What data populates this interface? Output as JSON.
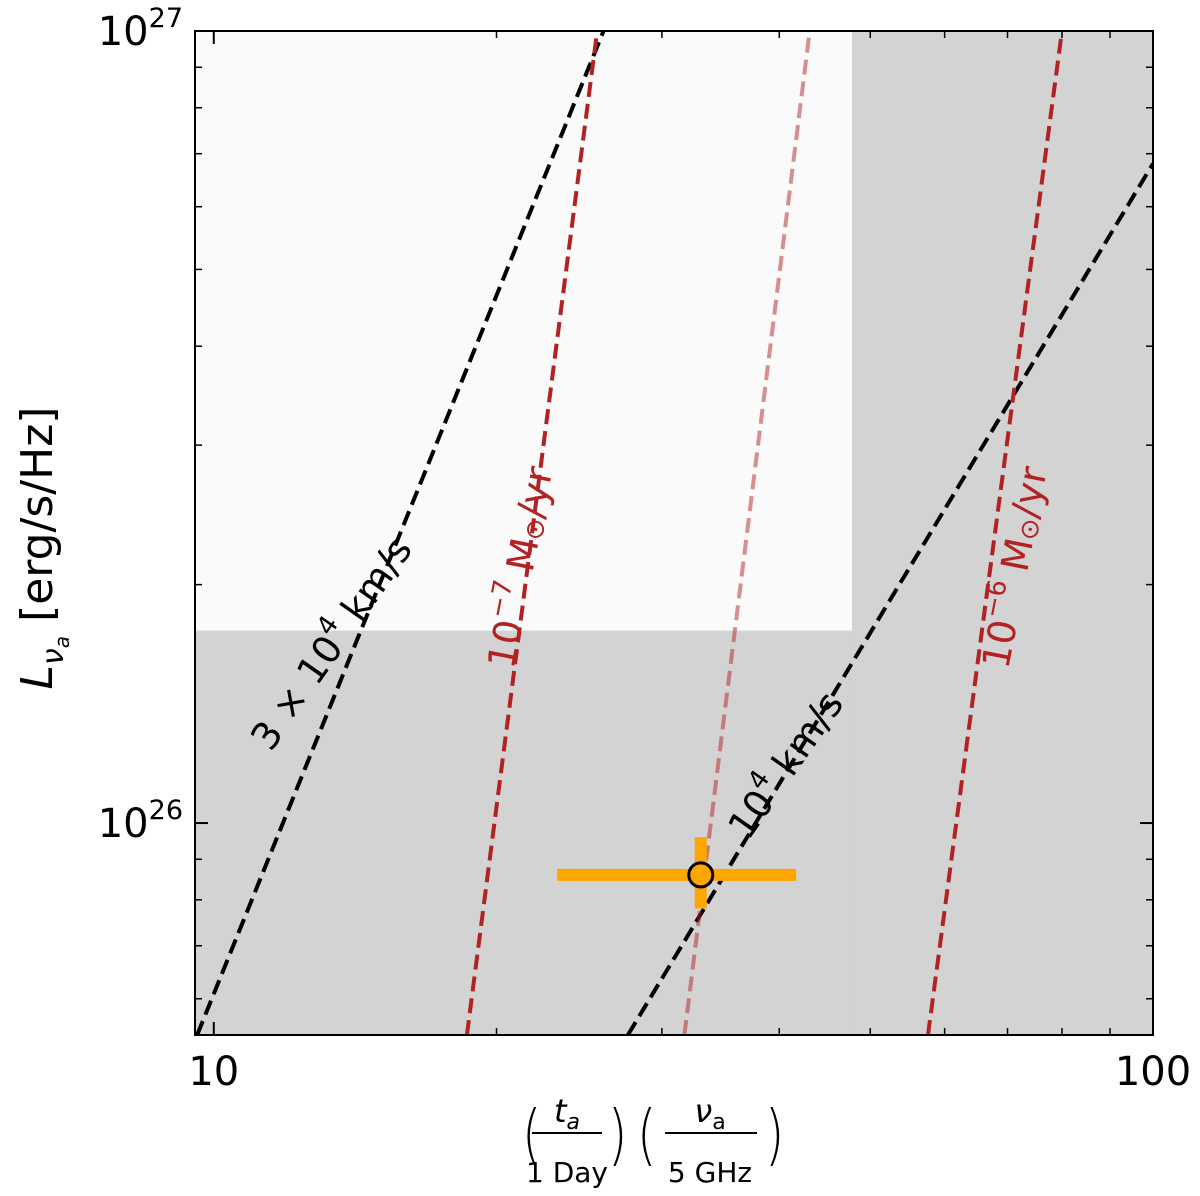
{
  "chart_data": {
    "type": "scatter",
    "xscale": "log",
    "yscale": "log",
    "xlim": [
      9.55,
      100
    ],
    "ylim": [
      5.4e+25,
      1e+27
    ],
    "ylabel_main": "L",
    "ylabel_sub": "ν",
    "ylabel_subsub": "a",
    "ylabel_units": " [erg/s/Hz]",
    "xlabel": {
      "t_num": "t",
      "t_sub": "a",
      "t_den": "1 Day",
      "nu_num": "ν",
      "nu_sub": "a",
      "nu_den": "5 GHz",
      "lparen": "(",
      "rparen": ")"
    },
    "x_ticks": [
      {
        "value": 10,
        "label": "10"
      },
      {
        "value": 100,
        "label": "100"
      }
    ],
    "y_ticks": [
      {
        "value": 1e+26,
        "base": "10",
        "exp": "26"
      },
      {
        "value": 1e+27,
        "base": "10",
        "exp": "27"
      }
    ],
    "shaded_regions": [
      {
        "name": "shaded-region-bottom",
        "x": [
          9.55,
          100
        ],
        "y": [
          5.4e+25,
          1.75e+26
        ],
        "color": "#d3d3d3"
      },
      {
        "name": "shaded-region-right",
        "x": [
          47.8,
          100
        ],
        "y": [
          5.4e+25,
          1e+27
        ],
        "color": "#d3d3d3"
      },
      {
        "name": "unshaded-region",
        "x": [
          9.55,
          47.8
        ],
        "y": [
          1.75e+26,
          1e+27
        ],
        "color": "#fafafa"
      }
    ],
    "series": [
      {
        "key": "velocity-3e4",
        "x": [
          9.6,
          26.0
        ],
        "y": [
          5.4e+25,
          1e+27
        ],
        "color": "#000000",
        "opacity": 1
      },
      {
        "key": "velocity-1e4",
        "x": [
          27.6,
          100
        ],
        "y": [
          5.4e+25,
          6.8e+26
        ],
        "color": "#000000",
        "opacity": 1
      },
      {
        "key": "mdot-1e-7",
        "x": [
          18.6,
          25.6
        ],
        "y": [
          5.4e+25,
          1e+27
        ],
        "color": "#b22222",
        "opacity": 1
      },
      {
        "key": "mdot-1e-6",
        "x": [
          57.6,
          80.0
        ],
        "y": [
          5.4e+25,
          1e+27
        ],
        "color": "#b22222",
        "opacity": 1
      },
      {
        "key": "mdot-faint",
        "x": [
          31.7,
          43.1
        ],
        "y": [
          5.4e+25,
          1e+27
        ],
        "color": "#b22222",
        "opacity": 0.5
      }
    ],
    "line_labels": [
      {
        "key": "label-3e4",
        "x": 13.4,
        "y": 1.68e+26,
        "angle": -55,
        "color": "#000000",
        "base": "3 × 10",
        "exp": "4",
        "unit": " km/s"
      },
      {
        "key": "label-mdot-1e-7",
        "x": 21.3,
        "y": 2.1e+26,
        "angle": -79,
        "color": "#b22222",
        "base": "10",
        "exp": "−7",
        "unit": " M",
        "sun": "⊙",
        "tail": "/yr"
      },
      {
        "key": "label-1e4",
        "x": 40.8,
        "y": 1.18e+26,
        "angle": -55,
        "color": "#000000",
        "base": "10",
        "exp": "4",
        "unit": " km/s"
      },
      {
        "key": "label-mdot-1e-6",
        "x": 71.6,
        "y": 2.1e+26,
        "angle": -79,
        "color": "#b22222",
        "base": "10",
        "exp": "−6",
        "unit": " M",
        "sun": "⊙",
        "tail": "/yr"
      }
    ],
    "points": [
      {
        "x": 33.0,
        "y": 8.6e+25,
        "xerr": [
          23.2,
          41.7
        ],
        "yerr": [
          7.8e+25,
          9.6e+25
        ],
        "color": "#ffa500",
        "marker_edge": "#000000",
        "marker_face": "#ffa500"
      }
    ]
  }
}
